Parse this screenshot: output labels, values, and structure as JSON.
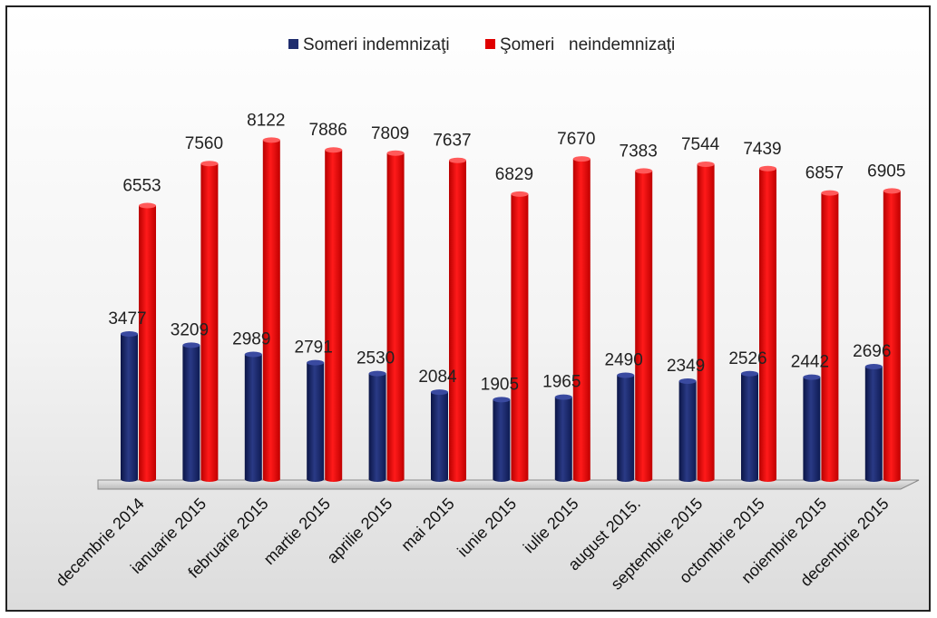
{
  "chart_data": {
    "type": "bar",
    "title": "",
    "xlabel": "",
    "ylabel": "",
    "ylim": [
      0,
      8500
    ],
    "grid": false,
    "legend_position": "top",
    "categories": [
      "decembrie 2014",
      "ianuarie 2015",
      "februarie 2015",
      "martie 2015",
      "aprilie 2015",
      "mai 2015",
      "iunie 2015",
      "iulie 2015",
      "august 2015.",
      "septembrie 2015",
      "octombrie 2015",
      "noiembrie 2015",
      "decembrie 2015"
    ],
    "series": [
      {
        "name": "Someri indemnizaţi",
        "color": "#1f2d6e",
        "values": [
          3477,
          3209,
          2989,
          2791,
          2530,
          2084,
          1905,
          1965,
          2490,
          2349,
          2526,
          2442,
          2696
        ]
      },
      {
        "name": "Şomeri   neindemnizaţi",
        "color": "#e00000",
        "values": [
          6553,
          7560,
          8122,
          7886,
          7809,
          7637,
          6829,
          7670,
          7383,
          7544,
          7439,
          6857,
          6905
        ]
      }
    ]
  }
}
